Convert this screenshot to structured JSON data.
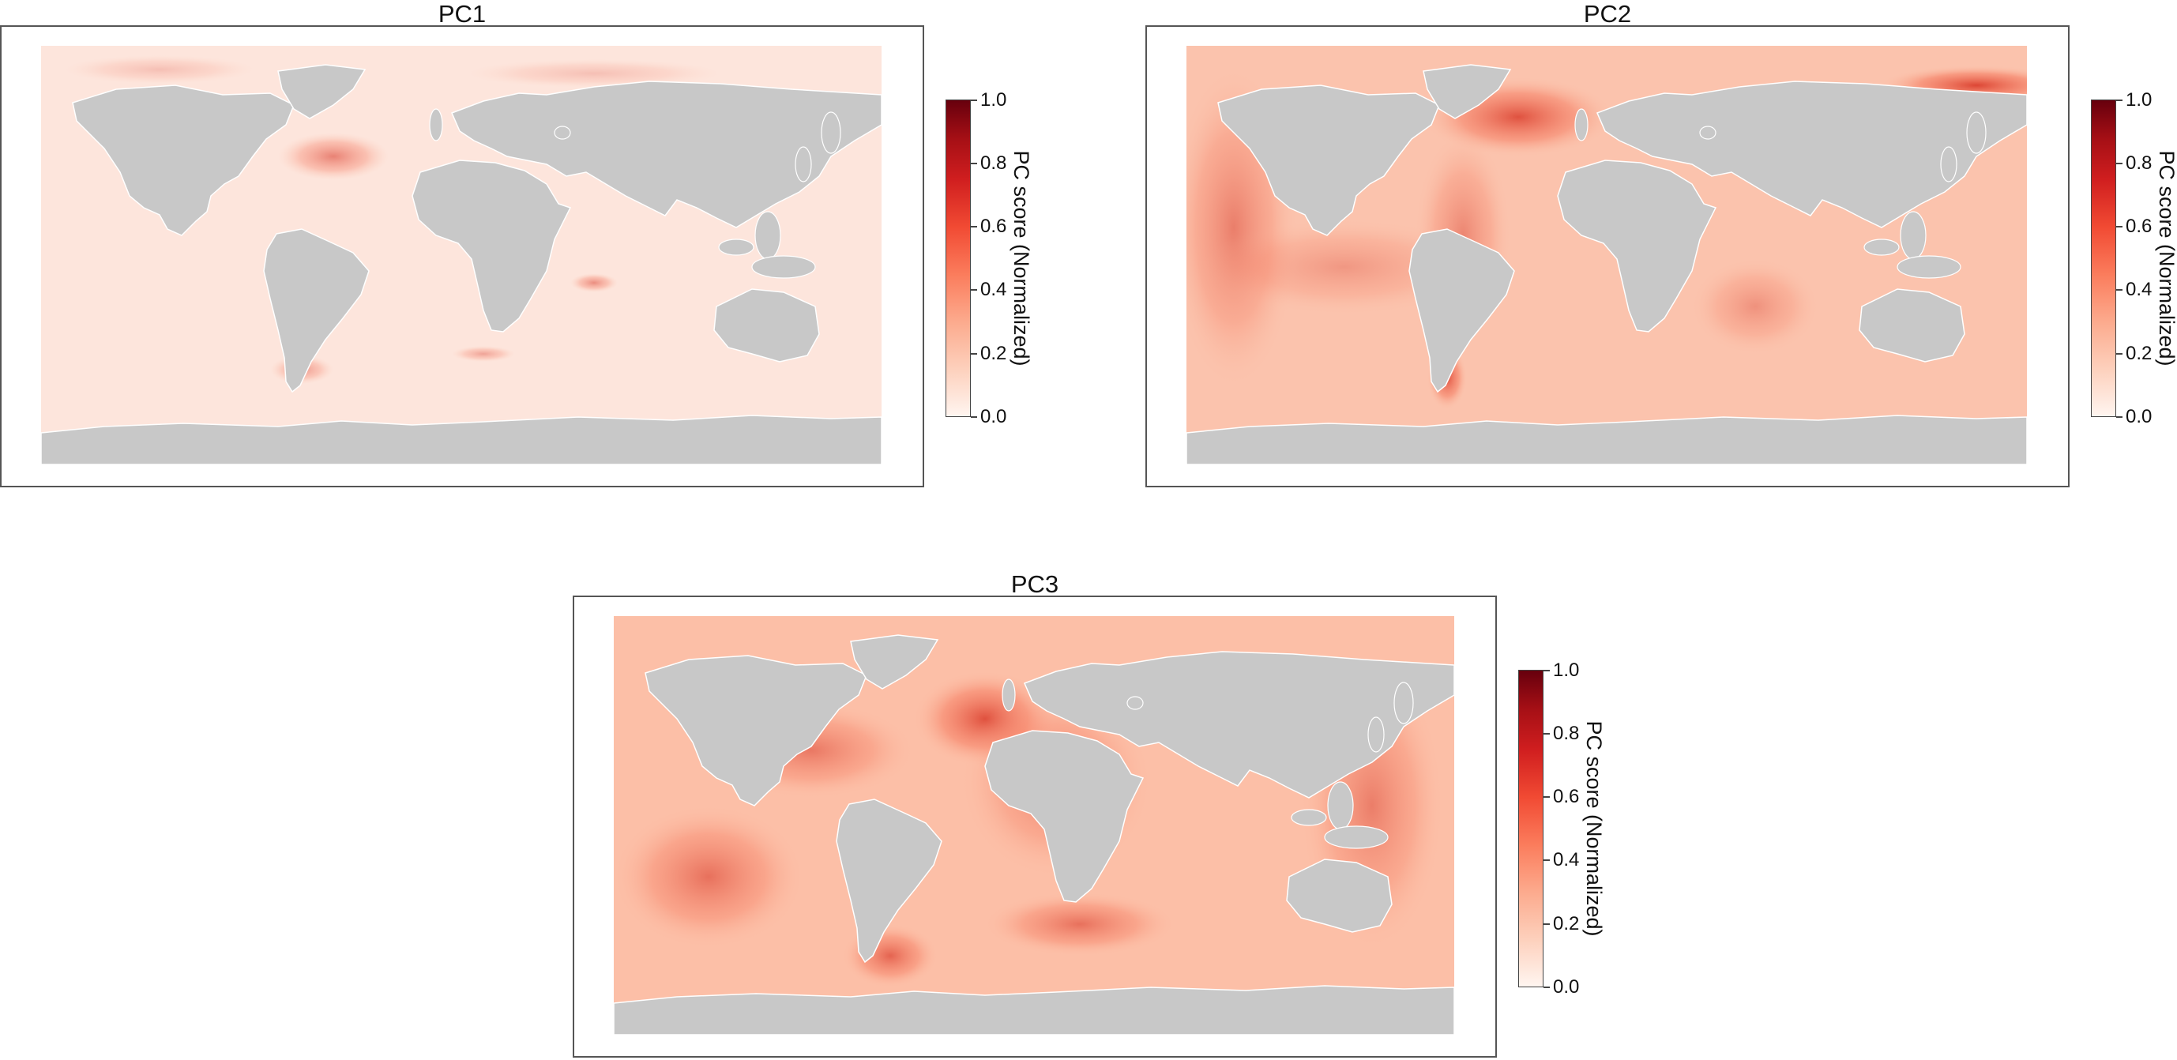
{
  "panels": [
    {
      "id": "pc1",
      "title": "PC1",
      "intensity": 0.35
    },
    {
      "id": "pc2",
      "title": "PC2",
      "intensity": 0.75
    },
    {
      "id": "pc3",
      "title": "PC3",
      "intensity": 0.85
    }
  ],
  "colorbar": {
    "label": "PC score (Normalized)",
    "ticks": [
      "0.0",
      "0.2",
      "0.4",
      "0.6",
      "0.8",
      "1.0"
    ],
    "colormap": "Reds",
    "range": [
      0.0,
      1.0
    ]
  },
  "colors": {
    "land": "#c8c8c8",
    "coast": "#ffffff",
    "frame": "#555555",
    "low": "#fff5f0",
    "high": "#67000d"
  }
}
